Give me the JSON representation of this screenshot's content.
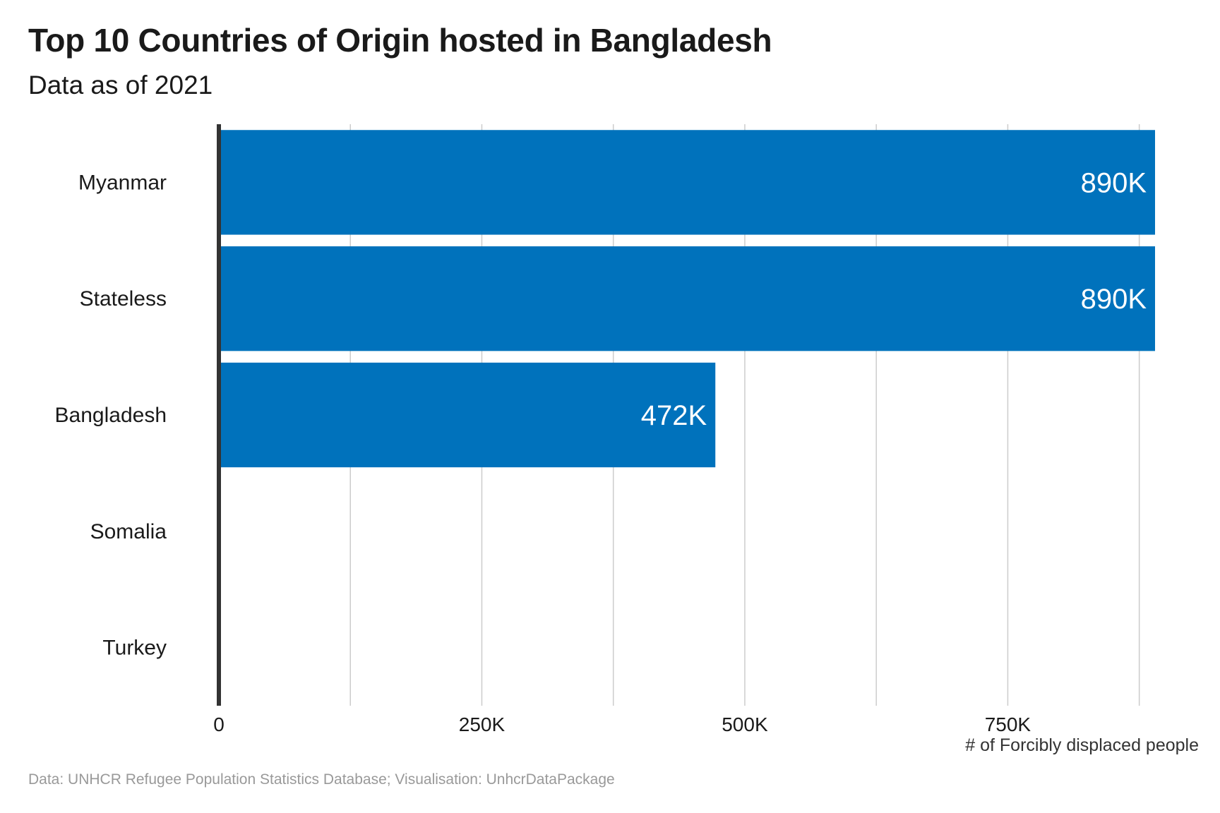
{
  "chart_data": {
    "type": "bar",
    "orientation": "horizontal",
    "title": "Top 10 Countries of Origin hosted in Bangladesh",
    "subtitle": "Data as of 2021",
    "caption": "Data: UNHCR Refugee Population Statistics Database; Visualisation: UnhcrDataPackage",
    "xlabel": "# of Forcibly displaced people",
    "ylabel": "",
    "categories": [
      "Myanmar",
      "Stateless",
      "Bangladesh",
      "Somalia",
      "Turkey"
    ],
    "values": [
      890000,
      890000,
      472000,
      0,
      0
    ],
    "value_labels": [
      "890K",
      "890K",
      "472K",
      "",
      ""
    ],
    "xlim": [
      0,
      890000
    ],
    "x_ticks": [
      0,
      250000,
      500000,
      750000
    ],
    "x_tick_labels": [
      "0",
      "250K",
      "500K",
      "750K"
    ],
    "x_minor_gridlines": [
      125000,
      375000,
      625000,
      875000
    ],
    "bar_color": "#0072BC",
    "grid": true,
    "gridline_color": "#cccccc",
    "axis_line_color": "#333333"
  }
}
